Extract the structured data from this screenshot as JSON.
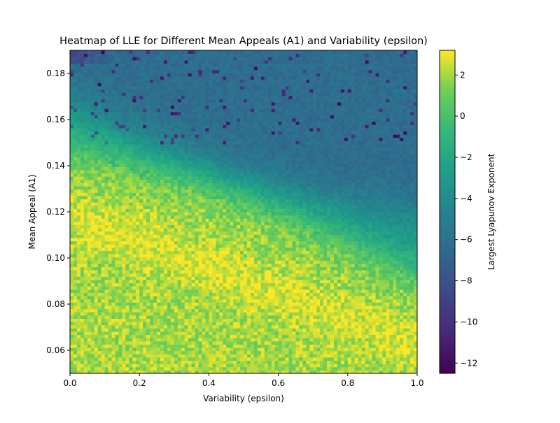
{
  "chart_data": {
    "type": "heatmap",
    "title": "Heatmap of LLE for Different Mean Appeals (A1) and Variability (epsilon)",
    "xlabel": "Variability (epsilon)",
    "ylabel": "Mean Appeal (A1)",
    "colorbar_label": "Largest Lyapunov Exponent",
    "colormap": "viridis",
    "xlim": [
      0.0,
      1.0
    ],
    "ylim": [
      0.05,
      0.19
    ],
    "clim": [
      -12.5,
      3.2
    ],
    "x_ticks": [
      "0.0",
      "0.2",
      "0.4",
      "0.6",
      "0.8",
      "1.0"
    ],
    "y_ticks": [
      "0.06",
      "0.08",
      "0.10",
      "0.12",
      "0.14",
      "0.16",
      "0.18"
    ],
    "colorbar_ticks": [
      "2",
      "0",
      "−2",
      "−4",
      "−6",
      "−8",
      "−10",
      "−12"
    ],
    "grid": {
      "nx": 100,
      "ny": 100,
      "description_values": [
        {
          "region": "low A1 (0.05-0.09)",
          "lle_approx": 2.0
        },
        {
          "region": "band boundary A1 0.10-0.16 decreasing with epsilon",
          "lle_approx": -3.0
        },
        {
          "region": "high A1 (0.15-0.19)",
          "lle_approx": -6.0
        },
        {
          "region": "top-left corner",
          "lle_approx": -9.0
        }
      ]
    }
  }
}
